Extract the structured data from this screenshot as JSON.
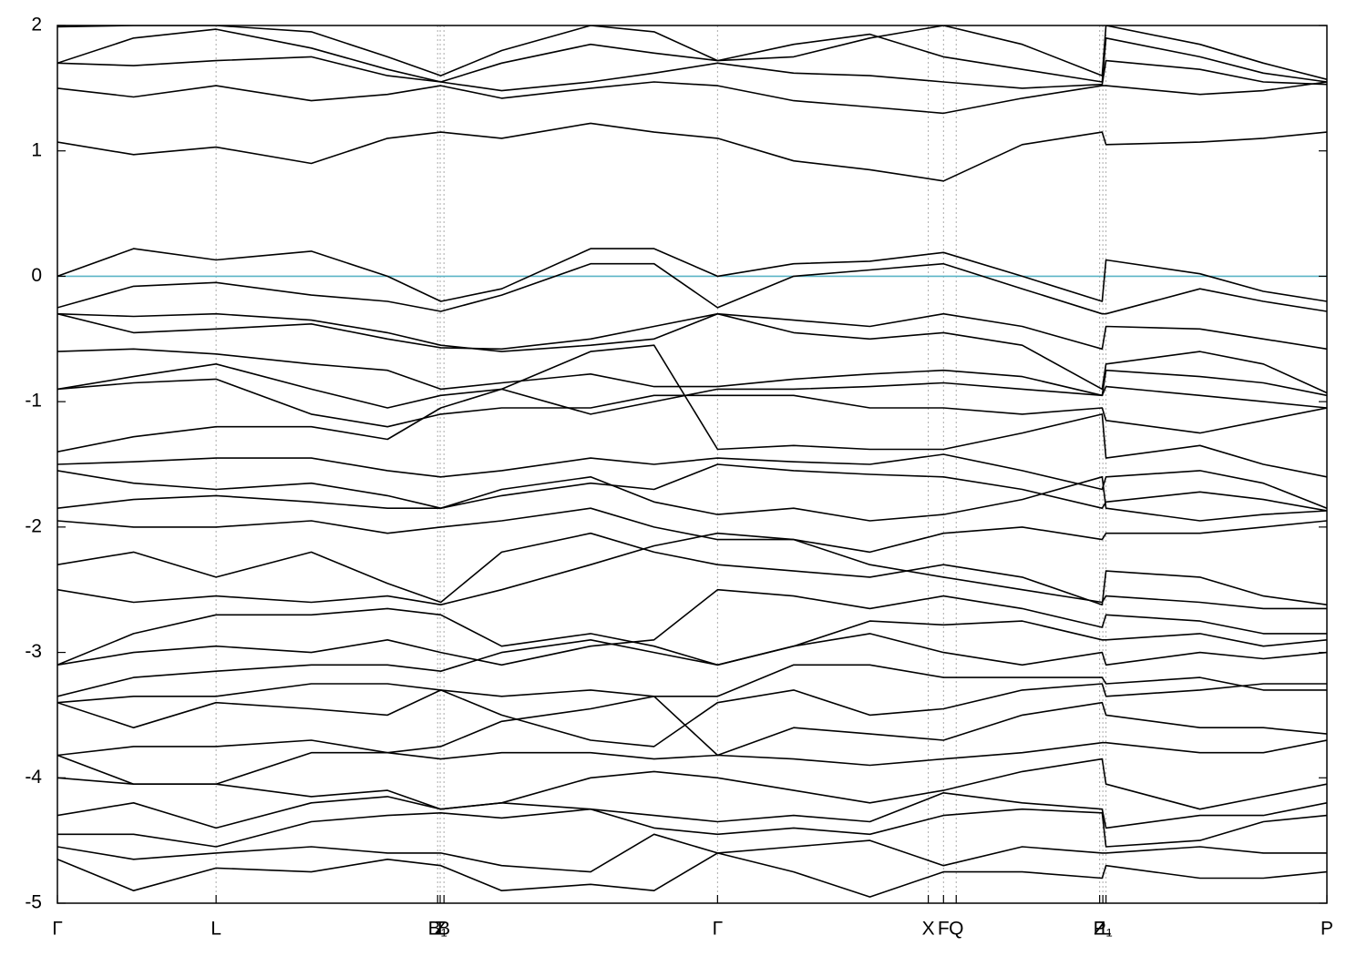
{
  "chart_data": {
    "type": "line",
    "color": "#000000",
    "hline": {
      "value": 0,
      "color": "#5ab4c6"
    },
    "ylim": [
      -5,
      2
    ],
    "yticks": [
      2,
      1,
      0,
      -1,
      -2,
      -3,
      -4,
      -5
    ],
    "xlim": [
      0,
      1
    ],
    "xticks": [
      {
        "value": 0,
        "label": "Γ"
      },
      {
        "value": 0.125,
        "label": "L"
      },
      {
        "value": 0.2995,
        "label": "B₁"
      },
      {
        "value": 0.3015,
        "label": "Z"
      },
      {
        "value": 0.3045,
        "label": "B"
      },
      {
        "value": 0.52,
        "label": "Γ"
      },
      {
        "value": 0.686,
        "label": "X"
      },
      {
        "value": 0.698,
        "label": "F"
      },
      {
        "value": 0.708,
        "label": "Q"
      },
      {
        "value": 0.821,
        "label": "Z"
      },
      {
        "value": 0.8235,
        "label": "P₁"
      },
      {
        "value": 0.826,
        "label": "L"
      },
      {
        "value": 1,
        "label": "P"
      }
    ],
    "x": [
      0,
      0.06,
      0.125,
      0.2,
      0.26,
      0.302,
      0.35,
      0.42,
      0.47,
      0.52,
      0.58,
      0.64,
      0.698,
      0.76,
      0.823,
      0.826,
      0.9,
      0.95,
      1.0
    ],
    "series": [
      {
        "values": [
          1.07,
          0.97,
          1.03,
          0.9,
          1.1,
          1.15,
          1.1,
          1.22,
          1.15,
          1.1,
          0.92,
          0.85,
          0.76,
          1.05,
          1.15,
          1.05,
          1.07,
          1.1,
          1.15
        ]
      },
      {
        "values": [
          1.5,
          1.43,
          1.52,
          1.4,
          1.45,
          1.52,
          1.42,
          1.5,
          1.55,
          1.52,
          1.4,
          1.35,
          1.3,
          1.42,
          1.52,
          1.52,
          1.45,
          1.48,
          1.55
        ]
      },
      {
        "values": [
          1.7,
          1.68,
          1.72,
          1.75,
          1.6,
          1.55,
          1.48,
          1.55,
          1.62,
          1.7,
          1.62,
          1.6,
          1.55,
          1.5,
          1.53,
          1.72,
          1.65,
          1.55,
          1.53
        ]
      },
      {
        "values": [
          1.7,
          1.9,
          1.97,
          1.82,
          1.65,
          1.55,
          1.7,
          1.85,
          1.78,
          1.72,
          1.85,
          1.93,
          1.75,
          1.65,
          1.55,
          1.9,
          1.75,
          1.62,
          1.55
        ]
      },
      {
        "values": [
          1.99,
          2.0,
          2.0,
          1.95,
          1.75,
          1.6,
          1.8,
          2.0,
          1.95,
          1.72,
          1.75,
          1.9,
          2.0,
          1.85,
          1.6,
          2.0,
          1.85,
          1.7,
          1.57
        ]
      },
      {
        "values": [
          0.0,
          0.22,
          0.13,
          0.2,
          0.0,
          -0.2,
          -0.1,
          0.22,
          0.22,
          0.0,
          0.1,
          0.12,
          0.19,
          0.0,
          -0.2,
          0.13,
          0.02,
          -0.12,
          -0.2
        ]
      },
      {
        "values": [
          -0.25,
          -0.08,
          -0.05,
          -0.15,
          -0.2,
          -0.28,
          -0.15,
          0.1,
          0.1,
          -0.25,
          0.0,
          0.05,
          0.1,
          -0.1,
          -0.3,
          -0.3,
          -0.1,
          -0.2,
          -0.28
        ]
      },
      {
        "values": [
          -0.3,
          -0.32,
          -0.3,
          -0.35,
          -0.45,
          -0.55,
          -0.6,
          -0.55,
          -0.5,
          -0.3,
          -0.35,
          -0.4,
          -0.3,
          -0.4,
          -0.58,
          -0.4,
          -0.42,
          -0.5,
          -0.58
        ]
      },
      {
        "values": [
          -0.3,
          -0.45,
          -0.42,
          -0.38,
          -0.5,
          -0.57,
          -0.58,
          -0.5,
          -0.4,
          -0.3,
          -0.45,
          -0.5,
          -0.45,
          -0.55,
          -0.9,
          -0.7,
          -0.6,
          -0.7,
          -0.93
        ]
      },
      {
        "values": [
          -0.6,
          -0.58,
          -0.62,
          -0.7,
          -0.75,
          -0.9,
          -0.85,
          -0.78,
          -0.88,
          -0.88,
          -0.82,
          -0.78,
          -0.75,
          -0.8,
          -0.95,
          -0.75,
          -0.8,
          -0.85,
          -0.95
        ]
      },
      {
        "values": [
          -0.9,
          -0.8,
          -0.7,
          -0.9,
          -1.05,
          -0.95,
          -0.9,
          -1.1,
          -1.0,
          -0.9,
          -0.9,
          -0.88,
          -0.85,
          -0.9,
          -0.95,
          -0.88,
          -0.95,
          -1.0,
          -1.05
        ]
      },
      {
        "values": [
          -0.9,
          -0.85,
          -0.82,
          -1.1,
          -1.2,
          -1.1,
          -1.05,
          -1.05,
          -0.95,
          -0.95,
          -0.95,
          -1.05,
          -1.05,
          -1.1,
          -1.05,
          -1.15,
          -1.25,
          -1.15,
          -1.05
        ]
      },
      {
        "values": [
          -1.4,
          -1.28,
          -1.2,
          -1.2,
          -1.3,
          -1.05,
          -0.9,
          -0.6,
          -0.55,
          -1.38,
          -1.35,
          -1.38,
          -1.38,
          -1.25,
          -1.1,
          -1.45,
          -1.35,
          -1.5,
          -1.6
        ]
      },
      {
        "values": [
          -1.5,
          -1.48,
          -1.45,
          -1.45,
          -1.55,
          -1.6,
          -1.55,
          -1.45,
          -1.5,
          -1.45,
          -1.48,
          -1.5,
          -1.42,
          -1.55,
          -1.7,
          -1.6,
          -1.55,
          -1.65,
          -1.85
        ]
      },
      {
        "values": [
          -1.55,
          -1.65,
          -1.7,
          -1.65,
          -1.75,
          -1.85,
          -1.75,
          -1.65,
          -1.7,
          -1.5,
          -1.55,
          -1.58,
          -1.6,
          -1.7,
          -1.85,
          -1.8,
          -1.72,
          -1.78,
          -1.87
        ]
      },
      {
        "values": [
          -1.85,
          -1.78,
          -1.75,
          -1.8,
          -1.85,
          -1.85,
          -1.7,
          -1.6,
          -1.8,
          -1.9,
          -1.85,
          -1.95,
          -1.9,
          -1.78,
          -1.6,
          -1.85,
          -1.95,
          -1.9,
          -1.87
        ]
      },
      {
        "values": [
          -1.95,
          -2.0,
          -2.0,
          -1.95,
          -2.05,
          -2.0,
          -1.95,
          -1.85,
          -2.0,
          -2.1,
          -2.1,
          -2.2,
          -2.05,
          -2.0,
          -2.1,
          -2.05,
          -2.05,
          -2.0,
          -1.95
        ]
      },
      {
        "values": [
          -2.3,
          -2.2,
          -2.4,
          -2.2,
          -2.45,
          -2.6,
          -2.2,
          -2.05,
          -2.2,
          -2.3,
          -2.35,
          -2.4,
          -2.3,
          -2.4,
          -2.62,
          -2.35,
          -2.4,
          -2.55,
          -2.62
        ]
      },
      {
        "values": [
          -2.5,
          -2.6,
          -2.55,
          -2.6,
          -2.55,
          -2.62,
          -2.5,
          -2.3,
          -2.15,
          -2.05,
          -2.1,
          -2.3,
          -2.4,
          -2.5,
          -2.6,
          -2.55,
          -2.6,
          -2.65,
          -2.65
        ]
      },
      {
        "values": [
          -3.1,
          -2.85,
          -2.7,
          -2.7,
          -2.65,
          -2.7,
          -2.95,
          -2.85,
          -2.95,
          -3.1,
          -2.95,
          -2.75,
          -2.78,
          -2.75,
          -2.9,
          -2.9,
          -2.85,
          -2.95,
          -2.9
        ]
      },
      {
        "values": [
          -3.1,
          -3.0,
          -2.95,
          -3.0,
          -2.9,
          -3.0,
          -3.1,
          -2.95,
          -2.9,
          -2.5,
          -2.55,
          -2.65,
          -2.55,
          -2.65,
          -2.8,
          -2.7,
          -2.75,
          -2.85,
          -2.85
        ]
      },
      {
        "values": [
          -3.35,
          -3.2,
          -3.15,
          -3.1,
          -3.1,
          -3.15,
          -3.0,
          -2.9,
          -3.0,
          -3.1,
          -2.95,
          -2.85,
          -3.0,
          -3.1,
          -3.0,
          -3.1,
          -3.0,
          -3.05,
          -3.0
        ]
      },
      {
        "values": [
          -3.4,
          -3.35,
          -3.35,
          -3.25,
          -3.25,
          -3.3,
          -3.35,
          -3.3,
          -3.35,
          -3.35,
          -3.1,
          -3.1,
          -3.2,
          -3.2,
          -3.2,
          -3.25,
          -3.2,
          -3.3,
          -3.3
        ]
      },
      {
        "values": [
          -3.4,
          -3.6,
          -3.4,
          -3.45,
          -3.5,
          -3.3,
          -3.5,
          -3.7,
          -3.75,
          -3.4,
          -3.3,
          -3.5,
          -3.45,
          -3.3,
          -3.25,
          -3.35,
          -3.3,
          -3.25,
          -3.25
        ]
      },
      {
        "values": [
          -3.82,
          -3.75,
          -3.75,
          -3.7,
          -3.8,
          -3.75,
          -3.55,
          -3.45,
          -3.35,
          -3.82,
          -3.6,
          -3.65,
          -3.7,
          -3.5,
          -3.4,
          -3.5,
          -3.6,
          -3.6,
          -3.65
        ]
      },
      {
        "values": [
          -3.82,
          -4.05,
          -4.05,
          -3.8,
          -3.8,
          -3.85,
          -3.8,
          -3.8,
          -3.85,
          -3.82,
          -3.85,
          -3.9,
          -3.85,
          -3.8,
          -3.72,
          -3.72,
          -3.8,
          -3.8,
          -3.7
        ]
      },
      {
        "values": [
          -4.0,
          -4.05,
          -4.05,
          -4.15,
          -4.1,
          -4.25,
          -4.2,
          -4.0,
          -3.95,
          -4.0,
          -4.1,
          -4.2,
          -4.1,
          -3.95,
          -3.85,
          -4.05,
          -4.25,
          -4.15,
          -4.05
        ]
      },
      {
        "values": [
          -4.3,
          -4.2,
          -4.4,
          -4.2,
          -4.15,
          -4.25,
          -4.2,
          -4.25,
          -4.3,
          -4.35,
          -4.3,
          -4.35,
          -4.12,
          -4.2,
          -4.25,
          -4.4,
          -4.3,
          -4.3,
          -4.2
        ]
      },
      {
        "values": [
          -4.45,
          -4.45,
          -4.55,
          -4.35,
          -4.3,
          -4.28,
          -4.32,
          -4.25,
          -4.4,
          -4.45,
          -4.4,
          -4.45,
          -4.3,
          -4.25,
          -4.28,
          -4.55,
          -4.5,
          -4.35,
          -4.3
        ]
      },
      {
        "values": [
          -4.55,
          -4.65,
          -4.6,
          -4.55,
          -4.6,
          -4.6,
          -4.7,
          -4.75,
          -4.45,
          -4.6,
          -4.55,
          -4.5,
          -4.7,
          -4.55,
          -4.6,
          -4.6,
          -4.55,
          -4.6,
          -4.6
        ]
      },
      {
        "values": [
          -4.65,
          -4.9,
          -4.72,
          -4.75,
          -4.65,
          -4.7,
          -4.9,
          -4.85,
          -4.9,
          -4.6,
          -4.75,
          -4.95,
          -4.75,
          -4.75,
          -4.8,
          -4.7,
          -4.8,
          -4.8,
          -4.75
        ]
      }
    ]
  }
}
